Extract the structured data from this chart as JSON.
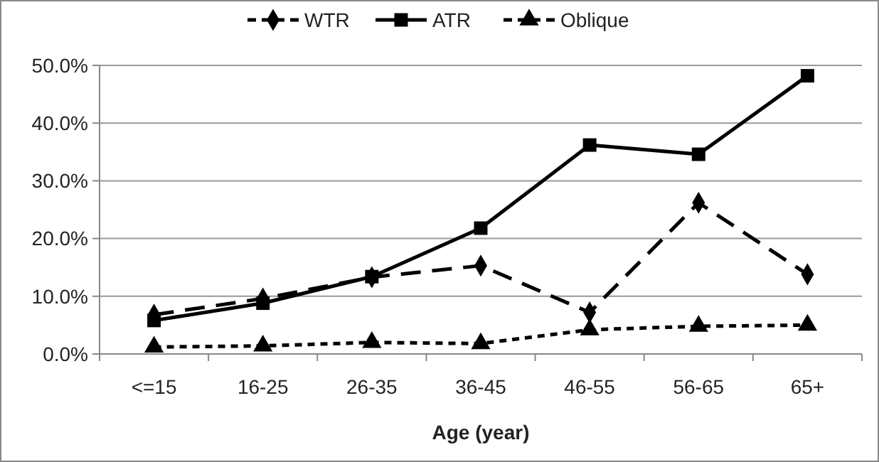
{
  "chart_data": {
    "type": "line",
    "xlabel": "Age (year)",
    "categories": [
      "<=15",
      "16-25",
      "26-35",
      "36-45",
      "46-55",
      "56-65",
      "65+"
    ],
    "series": [
      {
        "name": "WTR",
        "color": "#000000",
        "marker": "diamond",
        "line_style": "dashed",
        "values": [
          6.8,
          9.6,
          13.3,
          15.3,
          7.2,
          26.2,
          13.8
        ]
      },
      {
        "name": "ATR",
        "color": "#000000",
        "marker": "square",
        "line_style": "solid",
        "values": [
          5.8,
          8.8,
          13.4,
          21.8,
          36.2,
          34.6,
          48.2
        ]
      },
      {
        "name": "Oblique",
        "color": "#000000",
        "marker": "triangle",
        "line_style": "dotted",
        "values": [
          1.2,
          1.4,
          2.0,
          1.8,
          4.2,
          4.8,
          5.0
        ]
      }
    ],
    "ylim": [
      0,
      50
    ],
    "yticks": [
      {
        "value": 0,
        "label": "0.0%"
      },
      {
        "value": 10,
        "label": "10.0%"
      },
      {
        "value": 20,
        "label": "20.0%"
      },
      {
        "value": 30,
        "label": "30.0%"
      },
      {
        "value": 40,
        "label": "40.0%"
      },
      {
        "value": 50,
        "label": "50.0%"
      }
    ],
    "grid": "y",
    "legend": "top"
  }
}
